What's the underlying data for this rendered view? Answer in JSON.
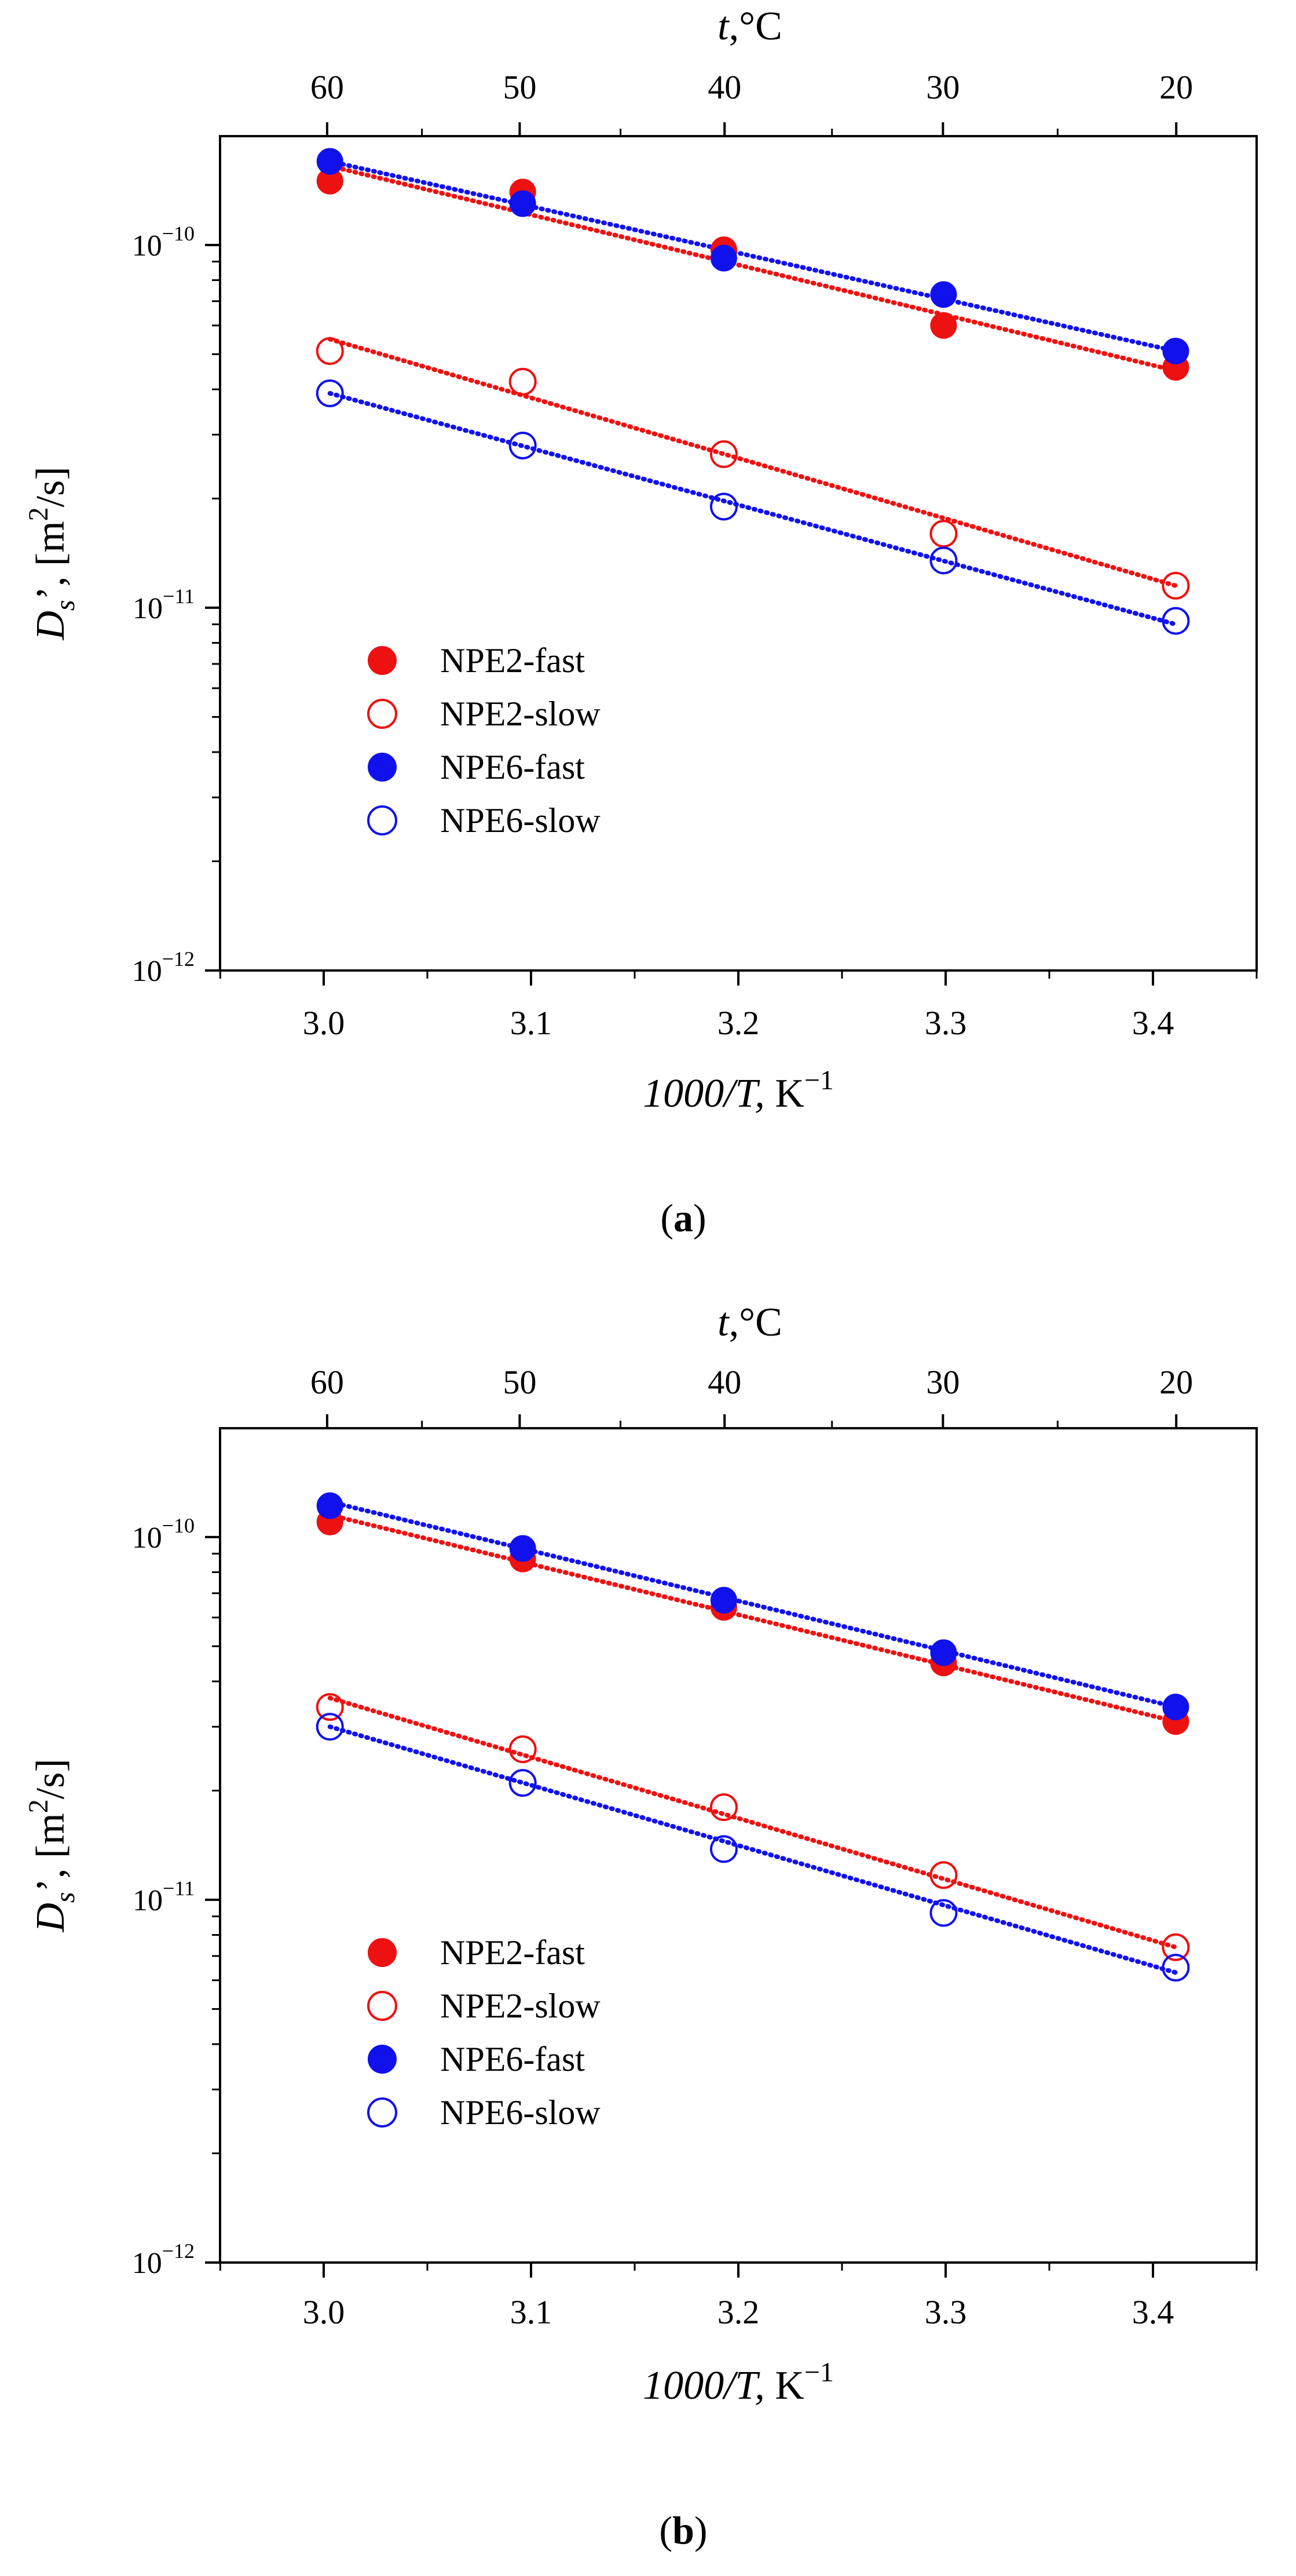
{
  "chart_data": [
    {
      "panel": "a",
      "caption_letter": "a",
      "type": "scatter",
      "y_scale": "log",
      "xlim": [
        2.95,
        3.45
      ],
      "ylim_exp": [
        -12,
        -9.7
      ],
      "x_ticks": [
        "3.0",
        "3.1",
        "3.2",
        "3.3",
        "3.4"
      ],
      "x_tick_values": [
        3.0,
        3.1,
        3.2,
        3.3,
        3.4
      ],
      "y_tick_base": "10",
      "y_tick_exponents": [
        "−12",
        "−11",
        "−10"
      ],
      "y_tick_exp_values": [
        -12,
        -11,
        -10
      ],
      "top_axis_label": "t,°C",
      "top_ticks": [
        "60",
        "50",
        "40",
        "30",
        "20"
      ],
      "xlabel_italic": "1000/T,",
      "xlabel_unit": "K",
      "xlabel_unit_exp": "−1",
      "ylabel_symbol": "D",
      "ylabel_sub": "s",
      "ylabel_rest": "’, [m",
      "ylabel_sup": "2",
      "ylabel_end": "/s]",
      "series": [
        {
          "name": "NPE2-fast",
          "color": "#ee1111",
          "filled": true,
          "x": [
            3.003,
            3.096,
            3.193,
            3.299,
            3.411
          ],
          "y": [
            1.5e-10,
            1.4e-10,
            9.7e-11,
            6e-11,
            4.6e-11
          ],
          "fit": [
            [
              3.003,
              1.65e-10
            ],
            [
              3.411,
              4.5e-11
            ]
          ]
        },
        {
          "name": "NPE2-slow",
          "color": "#ee1111",
          "filled": false,
          "x": [
            3.003,
            3.096,
            3.193,
            3.299,
            3.411
          ],
          "y": [
            5.1e-11,
            4.2e-11,
            2.65e-11,
            1.6e-11,
            1.15e-11
          ],
          "fit": [
            [
              3.003,
              5.5e-11
            ],
            [
              3.411,
              1.15e-11
            ]
          ]
        },
        {
          "name": "NPE6-fast",
          "color": "#1111ee",
          "filled": true,
          "x": [
            3.003,
            3.096,
            3.193,
            3.299,
            3.411
          ],
          "y": [
            1.7e-10,
            1.3e-10,
            9.2e-11,
            7.3e-11,
            5.1e-11
          ],
          "fit": [
            [
              3.003,
              1.7e-10
            ],
            [
              3.411,
              5.1e-11
            ]
          ]
        },
        {
          "name": "NPE6-slow",
          "color": "#1111ee",
          "filled": false,
          "x": [
            3.003,
            3.096,
            3.193,
            3.299,
            3.411
          ],
          "y": [
            3.9e-11,
            2.8e-11,
            1.9e-11,
            1.35e-11,
            9.2e-12
          ],
          "fit": [
            [
              3.003,
              3.9e-11
            ],
            [
              3.411,
              9e-12
            ]
          ]
        }
      ]
    },
    {
      "panel": "b",
      "caption_letter": "b",
      "type": "scatter",
      "y_scale": "log",
      "xlim": [
        2.95,
        3.45
      ],
      "ylim_exp": [
        -12,
        -9.7
      ],
      "x_ticks": [
        "3.0",
        "3.1",
        "3.2",
        "3.3",
        "3.4"
      ],
      "x_tick_values": [
        3.0,
        3.1,
        3.2,
        3.3,
        3.4
      ],
      "y_tick_base": "10",
      "y_tick_exponents": [
        "−12",
        "−11",
        "−10"
      ],
      "y_tick_exp_values": [
        -12,
        -11,
        -10
      ],
      "top_axis_label": "t,°C",
      "top_ticks": [
        "60",
        "50",
        "40",
        "30",
        "20"
      ],
      "xlabel_italic": "1000/T,",
      "xlabel_unit": "K",
      "xlabel_unit_exp": "−1",
      "ylabel_symbol": "D",
      "ylabel_sub": "s",
      "ylabel_rest": "’, [m",
      "ylabel_sup": "2",
      "ylabel_end": "/s]",
      "series": [
        {
          "name": "NPE2-fast",
          "color": "#ee1111",
          "filled": true,
          "x": [
            3.003,
            3.096,
            3.193,
            3.299,
            3.411
          ],
          "y": [
            1.1e-10,
            8.7e-11,
            6.4e-11,
            4.5e-11,
            3.1e-11
          ],
          "fit": [
            [
              3.003,
              1.15e-10
            ],
            [
              3.411,
              3.1e-11
            ]
          ]
        },
        {
          "name": "NPE2-slow",
          "color": "#ee1111",
          "filled": false,
          "x": [
            3.003,
            3.096,
            3.193,
            3.299,
            3.411
          ],
          "y": [
            3.4e-11,
            2.6e-11,
            1.8e-11,
            1.17e-11,
            7.4e-12
          ],
          "fit": [
            [
              3.003,
              3.6e-11
            ],
            [
              3.411,
              7.4e-12
            ]
          ]
        },
        {
          "name": "NPE6-fast",
          "color": "#1111ee",
          "filled": true,
          "x": [
            3.003,
            3.096,
            3.193,
            3.299,
            3.411
          ],
          "y": [
            1.22e-10,
            9.3e-11,
            6.7e-11,
            4.8e-11,
            3.4e-11
          ],
          "fit": [
            [
              3.003,
              1.25e-10
            ],
            [
              3.411,
              3.4e-11
            ]
          ]
        },
        {
          "name": "NPE6-slow",
          "color": "#1111ee",
          "filled": false,
          "x": [
            3.003,
            3.096,
            3.193,
            3.299,
            3.411
          ],
          "y": [
            3e-11,
            2.1e-11,
            1.38e-11,
            9.2e-12,
            6.5e-12
          ],
          "fit": [
            [
              3.003,
              3e-11
            ],
            [
              3.411,
              6.3e-12
            ]
          ]
        }
      ]
    }
  ]
}
